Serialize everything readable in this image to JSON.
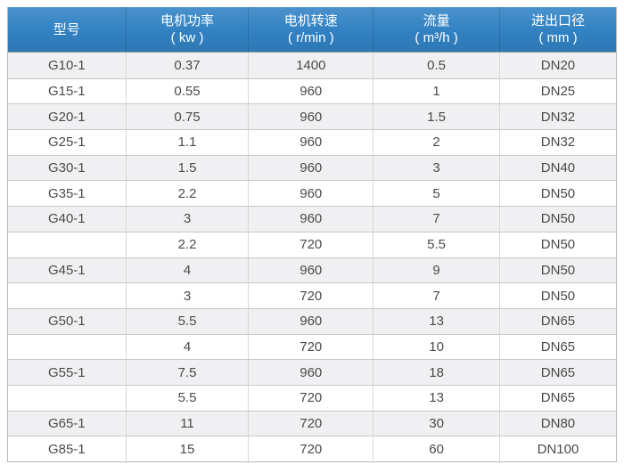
{
  "chart_data": {
    "type": "table",
    "columns": [
      {
        "label": "型号",
        "unit": ""
      },
      {
        "label": "电机功率",
        "unit": "( kw )"
      },
      {
        "label": "电机转速",
        "unit": "( r/min )"
      },
      {
        "label": "流量",
        "unit": "( m³/h )"
      },
      {
        "label": "进出口径",
        "unit": "( mm )"
      }
    ],
    "rows": [
      [
        "G10-1",
        "0.37",
        "1400",
        "0.5",
        "DN20"
      ],
      [
        "G15-1",
        "0.55",
        "960",
        "1",
        "DN25"
      ],
      [
        "G20-1",
        "0.75",
        "960",
        "1.5",
        "DN32"
      ],
      [
        "G25-1",
        "1.1",
        "960",
        "2",
        "DN32"
      ],
      [
        "G30-1",
        "1.5",
        "960",
        "3",
        "DN40"
      ],
      [
        "G35-1",
        "2.2",
        "960",
        "5",
        "DN50"
      ],
      [
        "G40-1",
        "3",
        "960",
        "7",
        "DN50"
      ],
      [
        "",
        "2.2",
        "720",
        "5.5",
        "DN50"
      ],
      [
        "G45-1",
        "4",
        "960",
        "9",
        "DN50"
      ],
      [
        "",
        "3",
        "720",
        "7",
        "DN50"
      ],
      [
        "G50-1",
        "5.5",
        "960",
        "13",
        "DN65"
      ],
      [
        "",
        "4",
        "720",
        "10",
        "DN65"
      ],
      [
        "G55-1",
        "7.5",
        "960",
        "18",
        "DN65"
      ],
      [
        "",
        "5.5",
        "720",
        "13",
        "DN65"
      ],
      [
        "G65-1",
        "11",
        "720",
        "30",
        "DN80"
      ],
      [
        "G85-1",
        "15",
        "720",
        "60",
        "DN100"
      ]
    ]
  },
  "colors": {
    "header_bg": "#3181c2",
    "header_bg_light": "#4a92cd",
    "header_bg_dark": "#2e78b5",
    "header_text": "#ffffff",
    "row_stripe": "#f0f0f2",
    "row_white": "#ffffff",
    "border_outer": "#b9b9b9",
    "border_horizontal": "#c8c8c8",
    "border_vertical": "#d7d7d7",
    "cell_text": "#4a4a4a"
  }
}
